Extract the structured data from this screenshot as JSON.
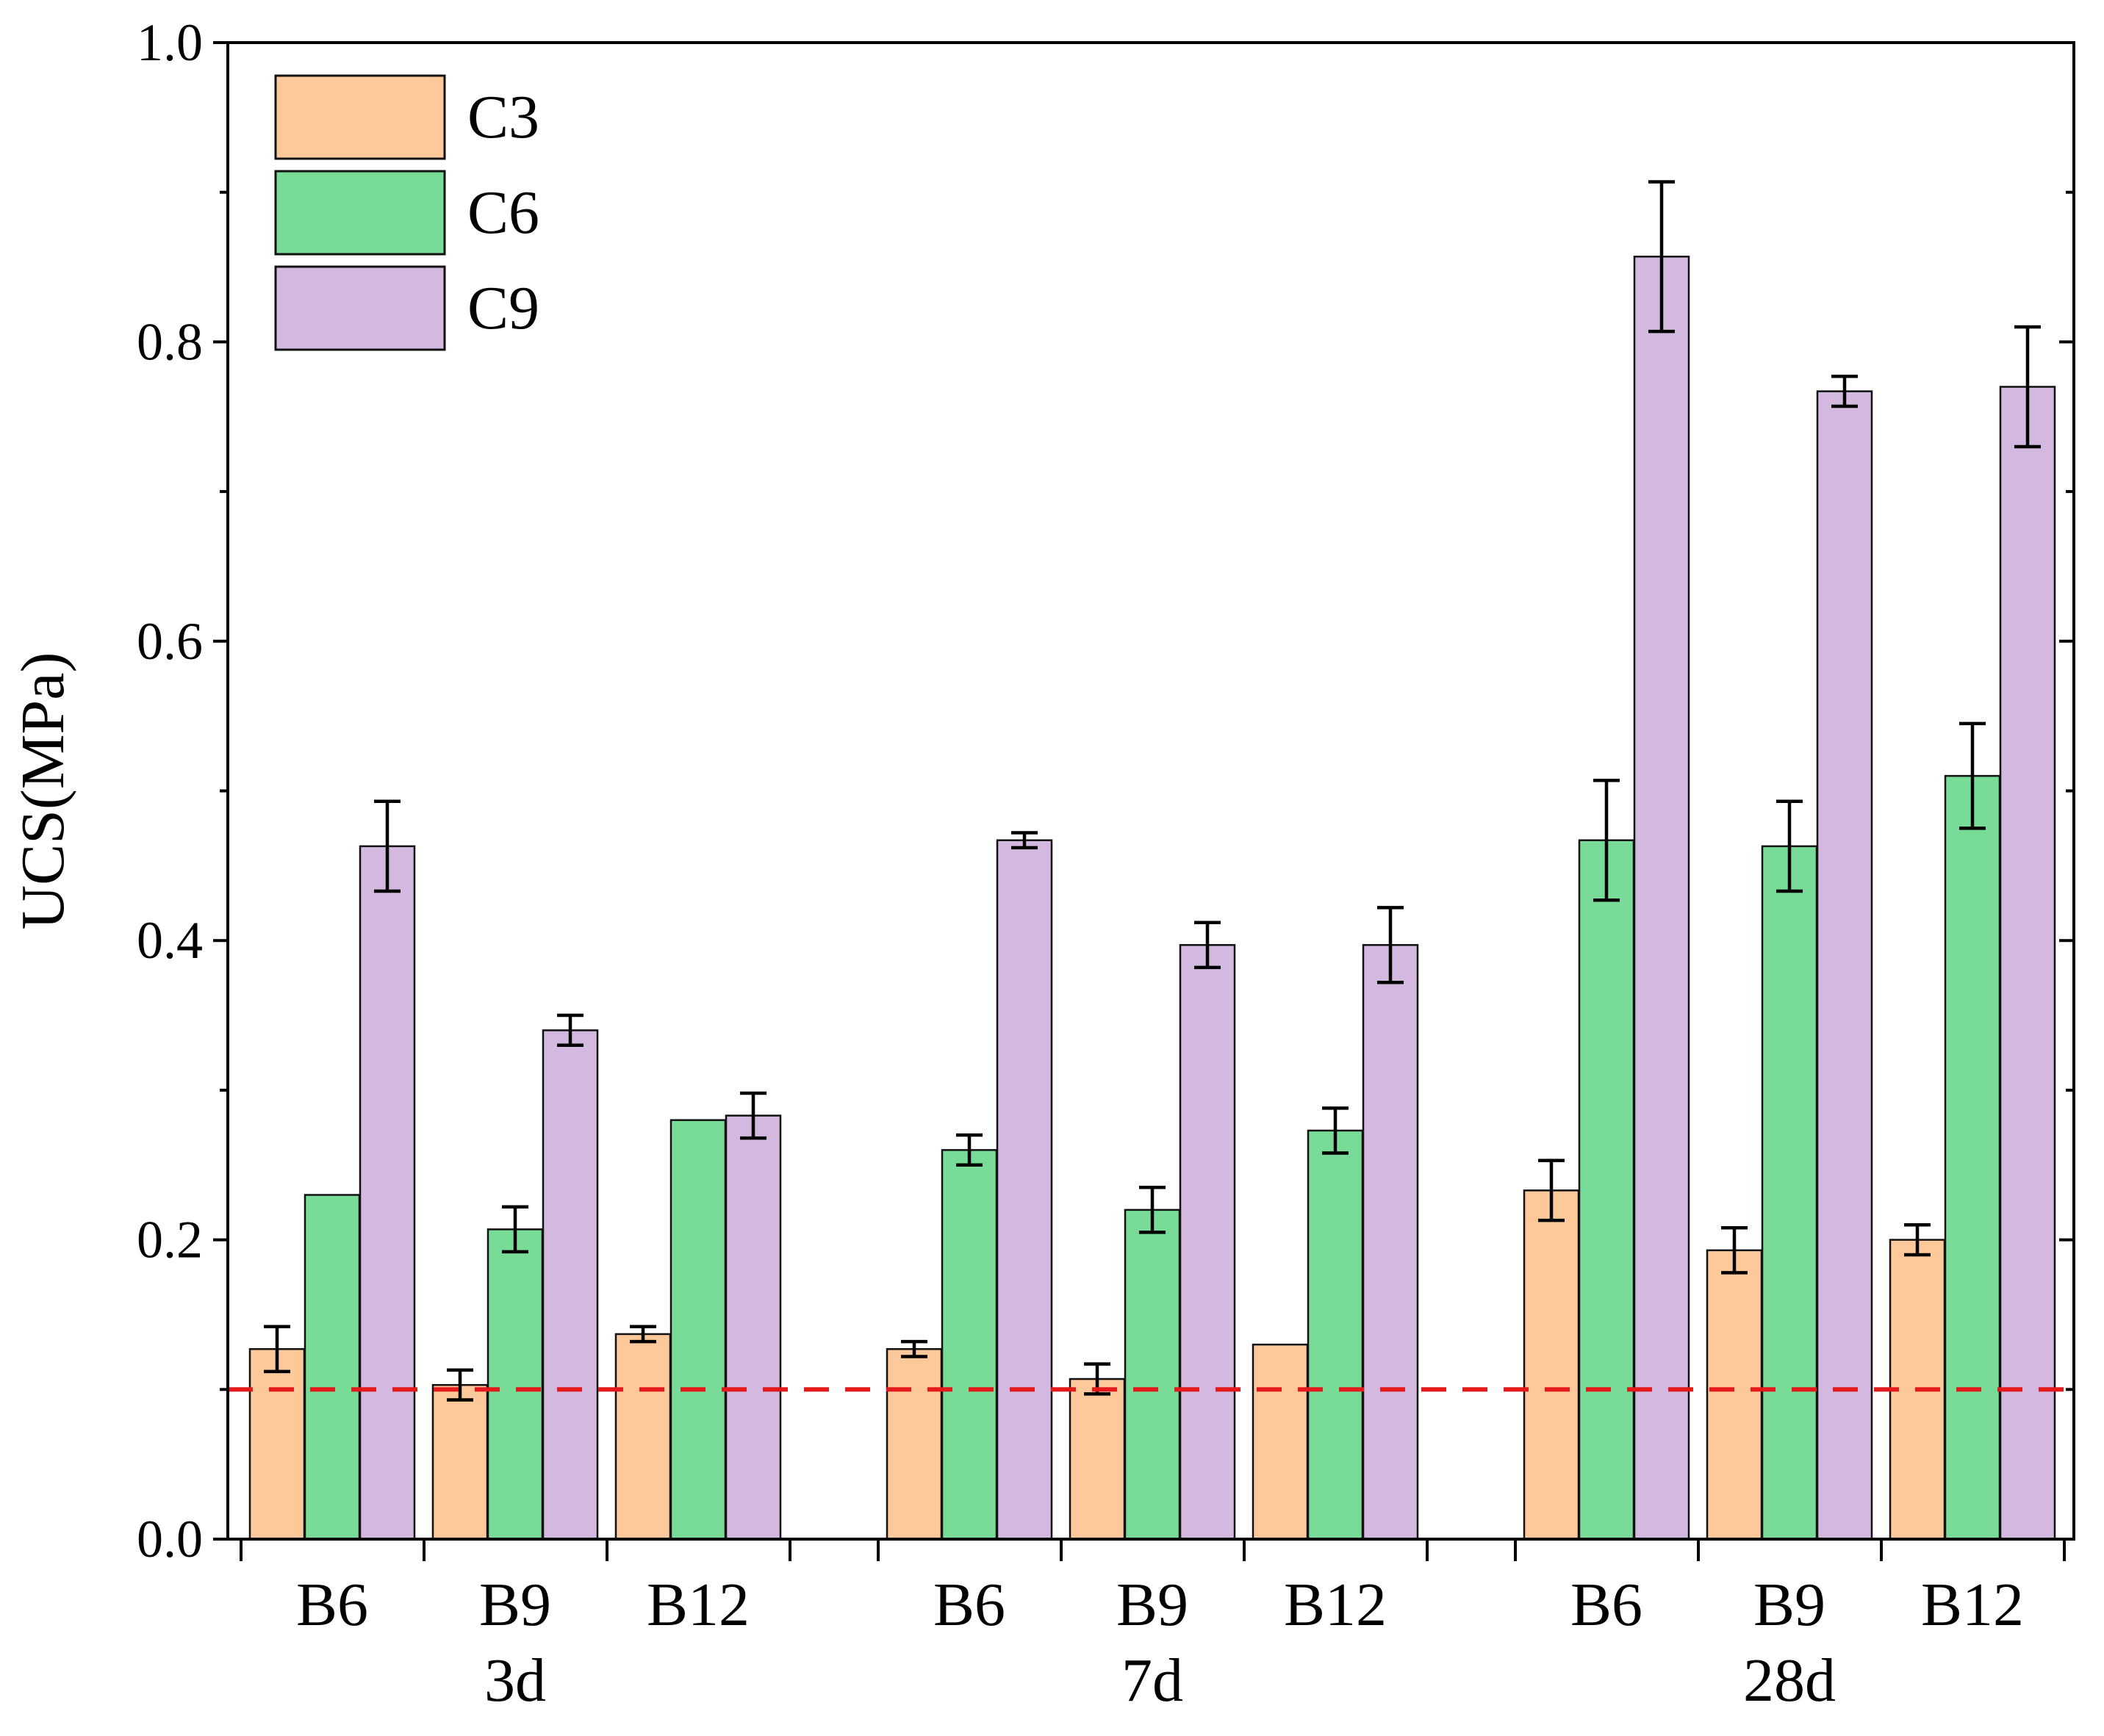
{
  "chart_data": {
    "type": "bar",
    "title": "",
    "ylabel": "UCS(MPa)",
    "xlabel": "",
    "ylim": [
      0,
      1.0
    ],
    "yticks": [
      0.0,
      0.2,
      0.4,
      0.6,
      0.8,
      1.0
    ],
    "ytick_labels": [
      "0.0",
      "0.2",
      "0.4",
      "0.6",
      "0.8",
      "1.0"
    ],
    "threshold": 0.1,
    "legend_position": "top-left",
    "groups": [
      {
        "label": "3d",
        "categories": [
          "B6",
          "B9",
          "B12"
        ],
        "series": [
          {
            "name": "C3",
            "values": [
              0.127,
              0.103,
              0.137
            ],
            "errors": [
              0.015,
              0.01,
              0.005
            ]
          },
          {
            "name": "C6",
            "values": [
              0.23,
              0.207,
              0.28
            ],
            "errors": [
              0.0,
              0.015,
              0.0
            ]
          },
          {
            "name": "C9",
            "values": [
              0.463,
              0.34,
              0.283
            ],
            "errors": [
              0.03,
              0.01,
              0.015
            ]
          }
        ]
      },
      {
        "label": "7d",
        "categories": [
          "B6",
          "B9",
          "B12"
        ],
        "series": [
          {
            "name": "C3",
            "values": [
              0.127,
              0.107,
              0.13
            ],
            "errors": [
              0.005,
              0.01,
              0.0
            ]
          },
          {
            "name": "C6",
            "values": [
              0.26,
              0.22,
              0.273
            ],
            "errors": [
              0.01,
              0.015,
              0.015
            ]
          },
          {
            "name": "C9",
            "values": [
              0.467,
              0.397,
              0.397
            ],
            "errors": [
              0.005,
              0.015,
              0.025
            ]
          }
        ]
      },
      {
        "label": "28d",
        "categories": [
          "B6",
          "B9",
          "B12"
        ],
        "series": [
          {
            "name": "C3",
            "values": [
              0.233,
              0.193,
              0.2
            ],
            "errors": [
              0.02,
              0.015,
              0.01
            ]
          },
          {
            "name": "C6",
            "values": [
              0.467,
              0.463,
              0.51
            ],
            "errors": [
              0.04,
              0.03,
              0.035
            ]
          },
          {
            "name": "C9",
            "values": [
              0.857,
              0.767,
              0.77
            ],
            "errors": [
              0.05,
              0.01,
              0.04
            ]
          }
        ]
      }
    ],
    "series_legend": [
      {
        "name": "C3",
        "color": "#fdc89a"
      },
      {
        "name": "C6",
        "color": "#78dc98"
      },
      {
        "name": "C9",
        "color": "#d3b9df"
      }
    ],
    "threshold_color": "#e3191c"
  }
}
